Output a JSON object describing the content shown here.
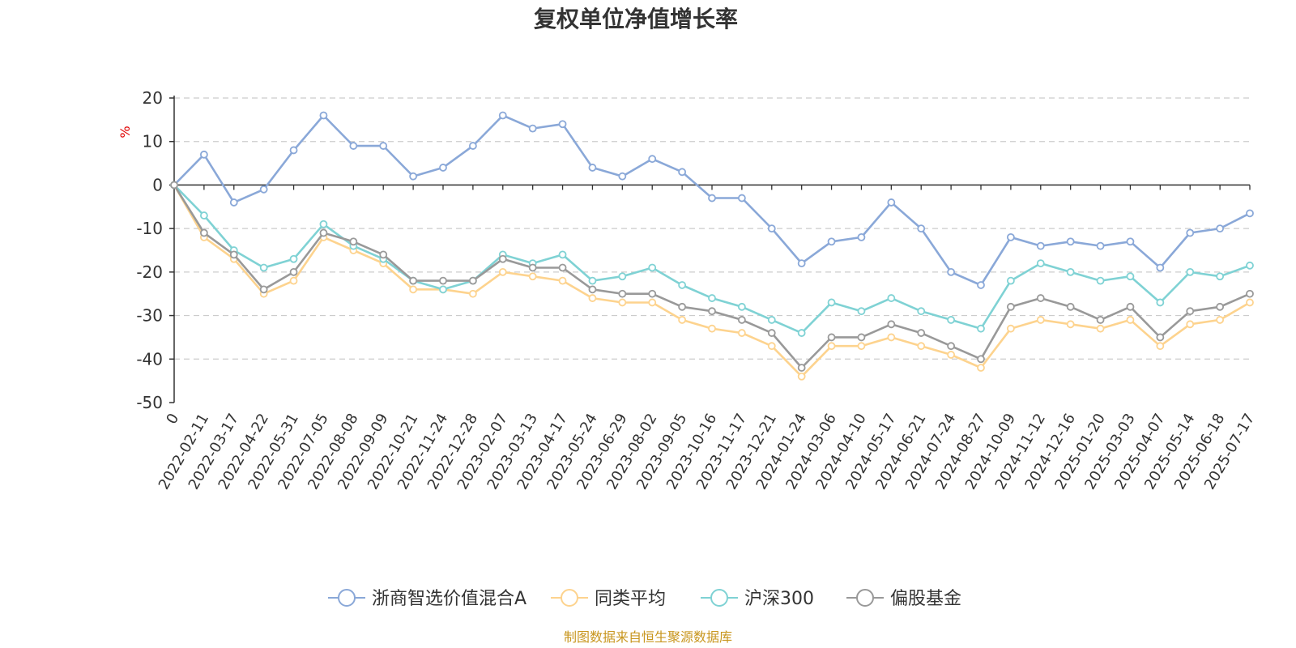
{
  "chart_data": {
    "type": "line",
    "title": "复权单位净值增长率",
    "ylabel": "%",
    "ylim": [
      -50,
      20
    ],
    "yticks": [
      20,
      10,
      0,
      -10,
      -20,
      -30,
      -40,
      -50
    ],
    "grid": true,
    "legend_position": "bottom",
    "x": [
      "0",
      "2022-02-11",
      "2022-03-17",
      "2022-04-22",
      "2022-05-31",
      "2022-07-05",
      "2022-08-08",
      "2022-09-09",
      "2022-10-21",
      "2022-11-24",
      "2022-12-28",
      "2023-02-07",
      "2023-03-13",
      "2023-04-17",
      "2023-05-24",
      "2023-06-29",
      "2023-08-02",
      "2023-09-05",
      "2023-10-16",
      "2023-11-17",
      "2023-12-21",
      "2024-01-24",
      "2024-03-06",
      "2024-04-10",
      "2024-05-17",
      "2024-06-21",
      "2024-07-24",
      "2024-08-27",
      "2024-10-09",
      "2024-11-12",
      "2024-12-16",
      "2025-01-20",
      "2025-03-03",
      "2025-04-07",
      "2025-05-14",
      "2025-06-18",
      "2025-07-17"
    ],
    "series": [
      {
        "name": "浙商智选价值混合A",
        "color": "#8aa8d8",
        "values": [
          0,
          7,
          -4,
          -1,
          8,
          16,
          9,
          9,
          2,
          4,
          9,
          16,
          13,
          14,
          4,
          2,
          6,
          3,
          -3,
          -3,
          -10,
          -18,
          -13,
          -12,
          -4,
          -10,
          -20,
          -23,
          -12,
          -14,
          -13,
          -14,
          -13,
          -19,
          -11,
          -10,
          -6.5
        ]
      },
      {
        "name": "同类平均",
        "color": "#fdd38e",
        "values": [
          0,
          -12,
          -17,
          -25,
          -22,
          -12,
          -15,
          -18,
          -24,
          -24,
          -25,
          -20,
          -21,
          -22,
          -26,
          -27,
          -27,
          -31,
          -33,
          -34,
          -37,
          -44,
          -37,
          -37,
          -35,
          -37,
          -39,
          -42,
          -33,
          -31,
          -32,
          -33,
          -31,
          -37,
          -32,
          -31,
          -27
        ]
      },
      {
        "name": "沪深300",
        "color": "#7fd2d4",
        "values": [
          0,
          -7,
          -15,
          -19,
          -17,
          -9,
          -14,
          -17,
          -22,
          -24,
          -22,
          -16,
          -18,
          -16,
          -22,
          -21,
          -19,
          -23,
          -26,
          -28,
          -31,
          -34,
          -27,
          -29,
          -26,
          -29,
          -31,
          -33,
          -22,
          -18,
          -20,
          -22,
          -21,
          -27,
          -20,
          -21,
          -18.5
        ]
      },
      {
        "name": "偏股基金",
        "color": "#999999",
        "values": [
          0,
          -11,
          -16,
          -24,
          -20,
          -11,
          -13,
          -16,
          -22,
          -22,
          -22,
          -17,
          -19,
          -19,
          -24,
          -25,
          -25,
          -28,
          -29,
          -31,
          -34,
          -42,
          -35,
          -35,
          -32,
          -34,
          -37,
          -40,
          -28,
          -26,
          -28,
          -31,
          -28,
          -35,
          -29,
          -28,
          -25
        ]
      }
    ]
  },
  "source": "制图数据来自恒生聚源数据库"
}
